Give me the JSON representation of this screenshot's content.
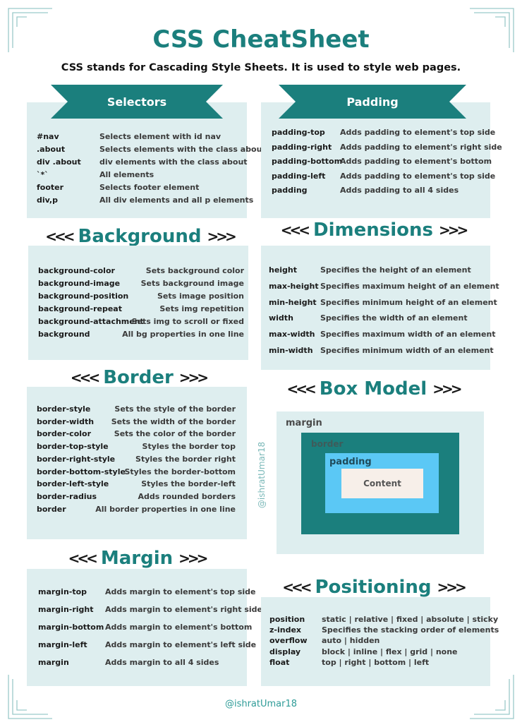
{
  "title": "CSS CheatSheet",
  "subtitle": "CSS stands for Cascading Style Sheets. It is used to style web pages.",
  "colors": {
    "accent": "#1b7f7d",
    "panel": "#deeeef",
    "padding_box": "#5bc8f5",
    "content_box": "#f7efe9"
  },
  "selectors": {
    "heading": "Selectors",
    "rows": [
      {
        "k": "#nav",
        "v": "Selects element with id nav"
      },
      {
        "k": ".about",
        "v": "Selects elements with the class about"
      },
      {
        "k": "div .about",
        "v": "div elements with the class about"
      },
      {
        "k": "`*`",
        "v": "All elements"
      },
      {
        "k": "footer",
        "v": "Selects footer element"
      },
      {
        "k": "div,p",
        "v": "All div elements and all p elements"
      }
    ]
  },
  "padding": {
    "heading": "Padding",
    "rows": [
      {
        "k": "padding-top",
        "v": "Adds padding to element's top side"
      },
      {
        "k": "padding-right",
        "v": "Adds padding to element's right side"
      },
      {
        "k": "padding-bottom",
        "v": "Adds padding to element's bottom"
      },
      {
        "k": "padding-left",
        "v": "Adds padding to element's top side"
      },
      {
        "k": "padding",
        "v": "Adds padding to all 4 sides"
      }
    ]
  },
  "background": {
    "heading": "Background",
    "rows": [
      {
        "k": "background-color",
        "v": "Sets background color"
      },
      {
        "k": "background-image",
        "v": "Sets background image"
      },
      {
        "k": "background-position",
        "v": "Sets image position"
      },
      {
        "k": "background-repeat",
        "v": "Sets img repetition"
      },
      {
        "k": "background-attachment",
        "v": "Sets img to scroll or fixed"
      },
      {
        "k": "background",
        "v": "All bg properties in one line"
      }
    ]
  },
  "dimensions": {
    "heading": "Dimensions",
    "rows": [
      {
        "k": "height",
        "v": "Specifies the height of an element"
      },
      {
        "k": "max-height",
        "v": "Specifies maximum height of an element"
      },
      {
        "k": "min-height",
        "v": "Specifies minimum height of an element"
      },
      {
        "k": "width",
        "v": "Specifies the width of an element"
      },
      {
        "k": "max-width",
        "v": "Specifies maximum width of an element"
      },
      {
        "k": "min-width",
        "v": "Specifies minimum width of an element"
      }
    ]
  },
  "border": {
    "heading": "Border",
    "rows": [
      {
        "k": "border-style",
        "v": "Sets the style of the border"
      },
      {
        "k": "border-width",
        "v": "Sets the width of the border"
      },
      {
        "k": "border-color",
        "v": "Sets the color of the border"
      },
      {
        "k": "border-top-style",
        "v": "Styles the border top"
      },
      {
        "k": "border-right-style",
        "v": "Styles the border right"
      },
      {
        "k": "border-bottom-style",
        "v": "Styles the border-bottom"
      },
      {
        "k": "border-left-style",
        "v": "Styles the border-left"
      },
      {
        "k": "border-radius",
        "v": "Adds rounded borders"
      },
      {
        "k": "border",
        "v": "All border properties in one line"
      }
    ]
  },
  "box_model": {
    "heading": "Box Model",
    "margin": "margin",
    "border": "border",
    "padding": "padding",
    "content": "Content"
  },
  "margin": {
    "heading": "Margin",
    "rows": [
      {
        "k": "margin-top",
        "v": "Adds margin to element's top side"
      },
      {
        "k": "margin-right",
        "v": "Adds margin to element's right side"
      },
      {
        "k": "margin-bottom",
        "v": "Adds margin to element's bottom"
      },
      {
        "k": "margin-left",
        "v": "Adds margin to element's left side"
      },
      {
        "k": "margin",
        "v": "Adds margin to all 4 sides"
      }
    ]
  },
  "positioning": {
    "heading": "Positioning",
    "rows": [
      {
        "k": "position",
        "v": "static | relative | fixed | absolute | sticky"
      },
      {
        "k": "z-index",
        "v": "Specifies the stacking order of elements"
      },
      {
        "k": "overflow",
        "v": "auto | hidden"
      },
      {
        "k": "display",
        "v": "block | inline | flex | grid | none"
      },
      {
        "k": "float",
        "v": "top | right | bottom |  left"
      }
    ]
  },
  "arrows": {
    "left": "<<<",
    "right": ">>>"
  },
  "watermark": "@ishratUmar18",
  "footer": "@ishratUmar18"
}
